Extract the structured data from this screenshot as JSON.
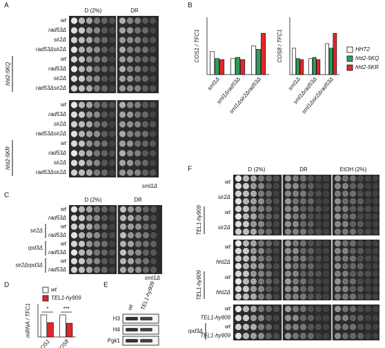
{
  "panel_a": {
    "label": "A",
    "columns": [
      "D (2%)",
      "DR"
    ],
    "blocks": [
      {
        "rows": [
          "wt",
          "rad53Δ",
          "sir2Δ",
          "rad53Δsir2Δ",
          "wt",
          "rad53Δ",
          "sir2Δ",
          "rad53Δsir2Δ"
        ],
        "group": "hht2-5KQ"
      },
      {
        "rows": [
          "wt",
          "rad53Δ",
          "sir2Δ",
          "rad53Δsir2Δ",
          "wt",
          "rad53Δ",
          "sir2Δ",
          "rad53Δsir2Δ"
        ],
        "group": "hht2-5KR"
      }
    ],
    "strain": "sml1Δ"
  },
  "panel_b": {
    "label": "B"
  },
  "panel_c": {
    "label": "C",
    "columns": [
      "D (2%)",
      "DR"
    ],
    "rows": [
      "wt",
      "rad53Δ",
      "wt",
      "rad53Δ",
      "wt",
      "rad53Δ",
      "wt",
      "rad53Δ"
    ],
    "groups": [
      "sir2Δ",
      "rpd3Δ",
      "sir2Δrpd3Δ"
    ],
    "strain": "sml1Δ"
  },
  "panel_d": {
    "label": "D"
  },
  "panel_e": {
    "label": "E",
    "columns": [
      "wt",
      "TEL1-hy909"
    ],
    "rows": [
      "H3",
      "H4",
      "Pgk1"
    ]
  },
  "panel_f": {
    "label": "F",
    "columns": [
      "D (2%)",
      "DR",
      "EtOH (2%)"
    ],
    "blocks": [
      {
        "rows": [
          "wt",
          "sir2Δ",
          "wt",
          "sir2Δ"
        ],
        "group": "TEL1-hy909"
      },
      {
        "rows": [
          "wt",
          "hht2Δ",
          "wt",
          "hht2Δ"
        ],
        "group": "TEL1-hy909"
      },
      {
        "rows": [
          "wt",
          "TEL1-hy909",
          "wt",
          "TEL1-hy909"
        ],
        "group": "rpd3Δ"
      }
    ]
  },
  "chart_data": [
    {
      "type": "bar",
      "ylabel": "COS1 / TFC1",
      "categories": [
        "sml1Δ",
        "sml1Δrad53Δ",
        "sml1Δsir2Δrad53Δ"
      ],
      "series": [
        {
          "color": "#ffffff",
          "values": [
            2.0,
            1.4,
            2.5
          ]
        },
        {
          "color": "#2e9e5b",
          "values": [
            1.4,
            1.5,
            2.2
          ]
        },
        {
          "color": "#e3262b",
          "values": [
            1.3,
            1.3,
            3.6
          ]
        }
      ],
      "ylim": [
        0,
        5
      ]
    },
    {
      "type": "bar",
      "ylabel": "COS8 / TFC1",
      "categories": [
        "sml1Δ",
        "sml1Δrad53Δ",
        "sml1Δsir2Δrad53Δ"
      ],
      "series": [
        {
          "name": "HHT2",
          "color": "#ffffff",
          "values": [
            2.3,
            1.4,
            2.7
          ]
        },
        {
          "name": "hht2-5KQ",
          "color": "#2e9e5b",
          "values": [
            1.4,
            1.5,
            2.3
          ]
        },
        {
          "name": "hht2-5KR",
          "color": "#e3262b",
          "values": [
            1.3,
            1.3,
            3.6
          ]
        }
      ],
      "ylim": [
        0,
        5
      ]
    },
    {
      "type": "bar",
      "ylabel": "mRNA / TFC1",
      "categories": [
        "COS1",
        "COS8"
      ],
      "series": [
        {
          "name": "wt",
          "color": "#ffffff",
          "values": [
            1.0,
            1.0
          ]
        },
        {
          "name": "TEL1-hy909",
          "color": "#e3262b",
          "values": [
            0.65,
            0.62
          ]
        }
      ],
      "ylim": [
        0,
        1.5
      ],
      "annotations": [
        "*",
        "***"
      ]
    }
  ]
}
